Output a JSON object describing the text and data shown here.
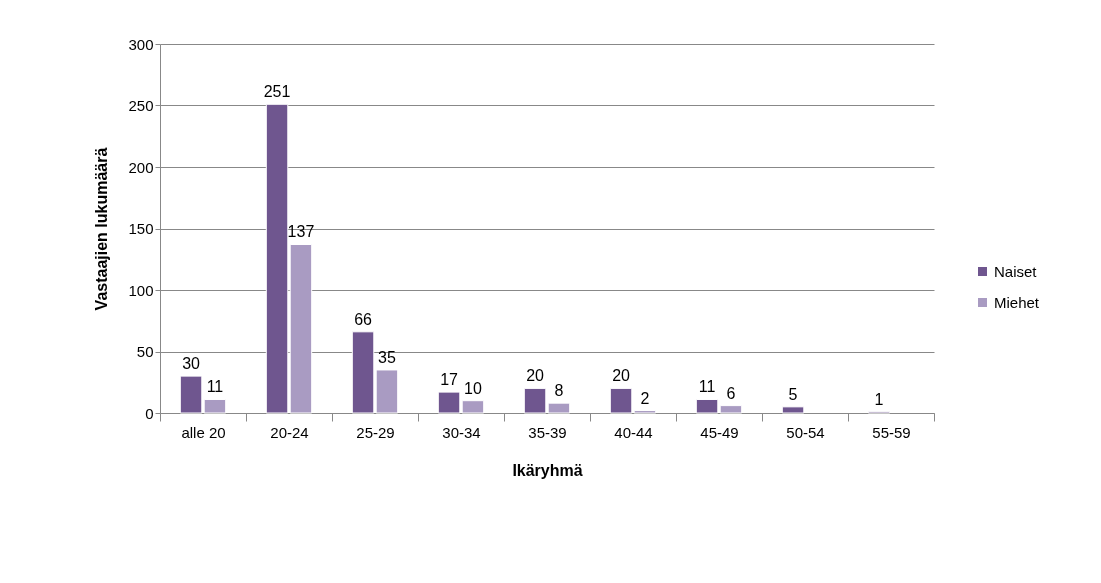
{
  "chart_data": {
    "type": "bar",
    "xlabel": "Ikäryhmä",
    "ylabel": "Vastaajien lukumäärä",
    "categories": [
      "alle 20",
      "20-24",
      "25-29",
      "30-34",
      "35-39",
      "40-44",
      "45-49",
      "50-54",
      "55-59"
    ],
    "series": [
      {
        "name": "Naiset",
        "color": "#6f568f",
        "values": [
          30,
          251,
          66,
          17,
          20,
          20,
          11,
          5,
          1
        ]
      },
      {
        "name": "Miehet",
        "color": "#a99bc2",
        "values": [
          11,
          137,
          35,
          10,
          8,
          2,
          6,
          null,
          null
        ]
      }
    ],
    "ylim": [
      0,
      300
    ],
    "yticks": [
      0,
      50,
      100,
      150,
      200,
      250,
      300
    ],
    "grid": "y",
    "legend": "right",
    "data_labels": true
  }
}
